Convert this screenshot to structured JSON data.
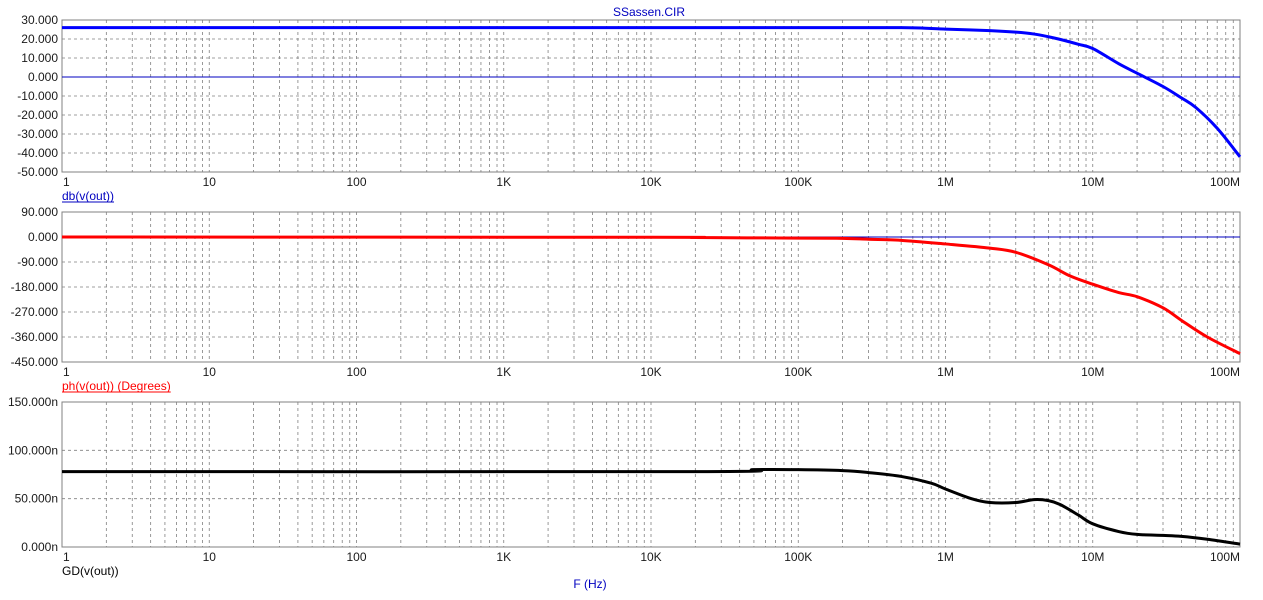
{
  "title": "SSassen.CIR",
  "xlabel": "F (Hz)",
  "colors": {
    "db": "#0000ff",
    "phase": "#ff0000",
    "gd": "#000000",
    "axis_text": "#0000c0",
    "grid": "#808080"
  },
  "chart_data": [
    {
      "type": "line",
      "ylabel": "db(v(out))",
      "xscale": "log",
      "xlim": [
        1,
        100000000
      ],
      "ylim": [
        -50,
        30
      ],
      "yticks": [
        -50,
        -40,
        -30,
        -20,
        -10,
        0,
        10,
        20,
        30
      ],
      "ytick_labels": [
        "-50.000",
        "-40.000",
        "-30.000",
        "-20.000",
        "-10.000",
        "0.000",
        "10.000",
        "20.000",
        "30.000"
      ],
      "xticks": [
        1,
        10,
        100,
        1000,
        10000,
        100000,
        1000000,
        10000000,
        100000000
      ],
      "xtick_labels": [
        "1",
        "10",
        "100",
        "1K",
        "10K",
        "100K",
        "1M",
        "10M",
        "100M"
      ],
      "zero_line": true,
      "grid": true,
      "series": [
        {
          "x": [
            1,
            10000,
            100000,
            500000,
            800000,
            1000000,
            2000000,
            3000000,
            4000000,
            5000000,
            6000000,
            8000000,
            10000000,
            15000000,
            20000000,
            30000000,
            40000000,
            50000000,
            70000000,
            100000000
          ],
          "y": [
            26,
            26,
            26,
            26,
            25.5,
            25.2,
            24.4,
            23.6,
            22.6,
            21.2,
            19.8,
            17.2,
            15.0,
            7.0,
            2.0,
            -5.0,
            -11.0,
            -16.0,
            -27.0,
            -42.0
          ]
        }
      ]
    },
    {
      "type": "line",
      "ylabel": "ph(v(out)) (Degrees)",
      "xscale": "log",
      "xlim": [
        1,
        100000000
      ],
      "ylim": [
        -450,
        90
      ],
      "yticks": [
        -450,
        -360,
        -270,
        -180,
        -90,
        0,
        90
      ],
      "ytick_labels": [
        "-450.000",
        "-360.000",
        "-270.000",
        "-180.000",
        "-90.000",
        "0.000",
        "90.000"
      ],
      "xticks": [
        1,
        10,
        100,
        1000,
        10000,
        100000,
        1000000,
        10000000,
        100000000
      ],
      "xtick_labels": [
        "1",
        "10",
        "100",
        "1K",
        "10K",
        "100K",
        "1M",
        "10M",
        "100M"
      ],
      "zero_line": true,
      "grid": true,
      "series": [
        {
          "x": [
            1,
            10000,
            20000,
            100000,
            200000,
            300000,
            500000,
            1000000,
            2000000,
            3000000,
            5000000,
            7000000,
            10000000,
            15000000,
            20000000,
            30000000,
            40000000,
            60000000,
            100000000
          ],
          "y": [
            0,
            -1,
            -2,
            -4,
            -5,
            -8,
            -12,
            -25,
            -40,
            -55,
            -100,
            -140,
            -170,
            -200,
            -215,
            -255,
            -300,
            -360,
            -420
          ]
        }
      ]
    },
    {
      "type": "line",
      "ylabel": "GD(v(out))",
      "xscale": "log",
      "xlim": [
        1,
        100000000
      ],
      "ylim": [
        0,
        150
      ],
      "yticks": [
        0,
        50,
        100,
        150
      ],
      "ytick_labels": [
        "0.000n",
        "50.000n",
        "100.000n",
        "150.000n"
      ],
      "xticks": [
        1,
        10,
        100,
        1000,
        10000,
        100000,
        1000000,
        10000000,
        100000000
      ],
      "xtick_labels": [
        "1",
        "10",
        "100",
        "1K",
        "10K",
        "100K",
        "1M",
        "10M",
        "100M"
      ],
      "zero_line": false,
      "grid": true,
      "series": [
        {
          "x": [
            1,
            20000,
            50000,
            100000,
            200000,
            300000,
            500000,
            800000,
            1000000,
            1500000,
            2000000,
            3000000,
            4000000,
            5000000,
            6000000,
            8000000,
            10000000,
            15000000,
            20000000,
            30000000,
            40000000,
            60000000,
            100000000
          ],
          "y": [
            78,
            78,
            80,
            80,
            79,
            77,
            73,
            66,
            60,
            50,
            46,
            46,
            49,
            48,
            44,
            33,
            24,
            16,
            13,
            12,
            11,
            8,
            3
          ]
        }
      ]
    }
  ]
}
